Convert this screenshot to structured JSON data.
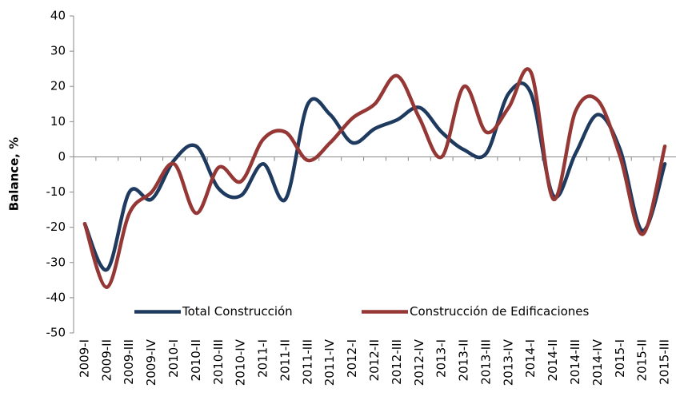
{
  "chart_data": {
    "type": "line",
    "y_label": "Balance, %",
    "categories": [
      "2009-I",
      "2009-II",
      "2009-III",
      "2009-IV",
      "2010-I",
      "2010-II",
      "2010-III",
      "2010-IV",
      "2011-I",
      "2011-II",
      "2011-III",
      "2011-IV",
      "2012-I",
      "2012-II",
      "2012-III",
      "2012-IV",
      "2013-I",
      "2013-II",
      "2013-III",
      "2013-IV",
      "2014-I",
      "2014-II",
      "2014-III",
      "2014-IV",
      "2015-I",
      "2015-II",
      "2015-III"
    ],
    "series": [
      {
        "name": "Total Construcción",
        "color": "#1f3a5f",
        "values": [
          -19,
          -32,
          -10,
          -12,
          -1,
          3,
          -9,
          -11,
          -2,
          -12,
          15,
          12,
          4,
          8,
          10.5,
          14,
          7,
          2,
          1,
          18,
          18,
          -11,
          1,
          12,
          2,
          -21,
          -2
        ]
      },
      {
        "name": "Construcción de Edificaciones",
        "color": "#953735",
        "values": [
          -19,
          -37,
          -16,
          -10,
          -2,
          -16,
          -3,
          -7,
          5,
          7,
          -1,
          4,
          11,
          15,
          23,
          11,
          0,
          20,
          7,
          14,
          24,
          -12,
          13,
          16,
          0,
          -22,
          3
        ]
      }
    ],
    "ylim": [
      -50,
      40
    ],
    "yticks": [
      -50,
      -40,
      -30,
      -20,
      -10,
      0,
      10,
      20,
      30,
      40
    ],
    "grid": false,
    "smooth": true,
    "legend": "lower center"
  }
}
